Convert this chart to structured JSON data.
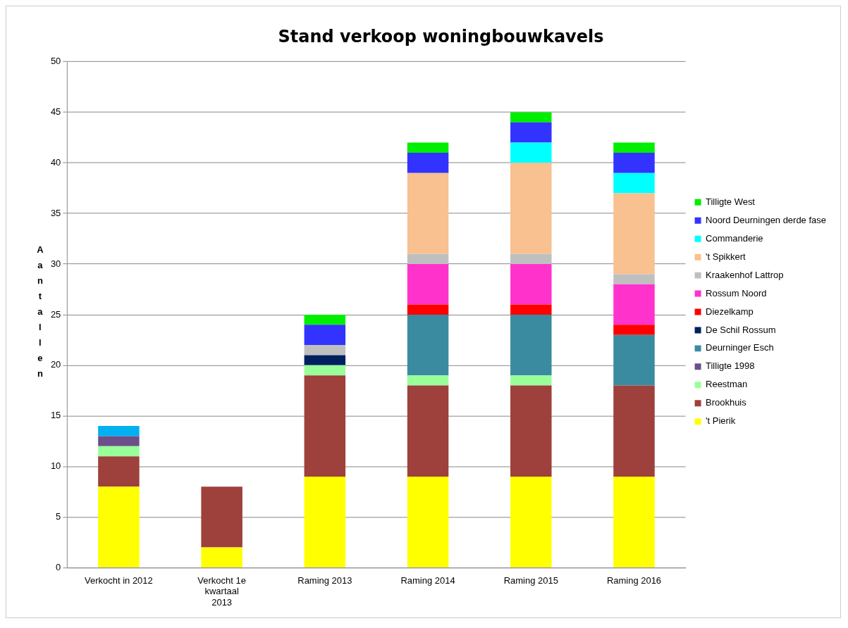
{
  "chart_data": {
    "type": "bar",
    "title": "Stand verkoop woningbouwkavels",
    "ylabel": "Aantallen",
    "stacked": true,
    "grid": "y",
    "legend": "right",
    "categories": [
      "Verkocht in 2012",
      "Verkocht 1e kwartaal 2013",
      "Raming 2013",
      "Raming 2014",
      "Raming 2015",
      "Raming 2016"
    ],
    "ylim": [
      0,
      50
    ],
    "yticks": [
      0,
      5,
      10,
      15,
      20,
      25,
      30,
      35,
      40,
      45,
      50
    ],
    "series": [
      {
        "name": "'t Pierik",
        "color": "#ffff00",
        "values": [
          8,
          2,
          9,
          9,
          9,
          9
        ]
      },
      {
        "name": "Brookhuis",
        "color": "#9e403c",
        "values": [
          3,
          6,
          10,
          9,
          9,
          9
        ]
      },
      {
        "name": "Reestman",
        "color": "#99ff99",
        "values": [
          1,
          null,
          1,
          1,
          1,
          null
        ]
      },
      {
        "name": "Tilligte 1998",
        "color": "#6b4f8a",
        "values": [
          1,
          null,
          null,
          null,
          null,
          null
        ]
      },
      {
        "name": "Deurninger Esch",
        "color": "#3b8ba0",
        "values": [
          null,
          null,
          null,
          6,
          6,
          5
        ]
      },
      {
        "name": "De Schil Rossum",
        "color": "#002060",
        "values": [
          null,
          null,
          1,
          null,
          null,
          null
        ]
      },
      {
        "name": "Diezelkamp",
        "color": "#ff0000",
        "values": [
          null,
          null,
          null,
          1,
          1,
          1
        ]
      },
      {
        "name": "Rossum Noord",
        "color": "#ff33cc",
        "values": [
          null,
          null,
          null,
          4,
          4,
          4
        ]
      },
      {
        "name": "Kraakenhof Lattrop",
        "color": "#bfbfbf",
        "values": [
          null,
          null,
          1,
          1,
          1,
          1
        ]
      },
      {
        "name": "'t Spikkert",
        "color": "#f9c090",
        "values": [
          null,
          null,
          null,
          8,
          9,
          8
        ]
      },
      {
        "name": "Commanderie",
        "color": "#00ffff",
        "values": [
          null,
          null,
          null,
          null,
          2,
          2
        ]
      },
      {
        "name": "Noord Deurningen derde fase",
        "color": "#3333ff",
        "values": [
          null,
          null,
          2,
          2,
          2,
          2
        ]
      },
      {
        "name": "Tilligte West",
        "color": "#00ee00",
        "values": [
          null,
          null,
          1,
          1,
          1,
          1
        ]
      },
      {
        "color": "#00b0f0",
        "values": [
          1,
          null,
          null,
          null,
          null,
          null
        ]
      }
    ]
  }
}
